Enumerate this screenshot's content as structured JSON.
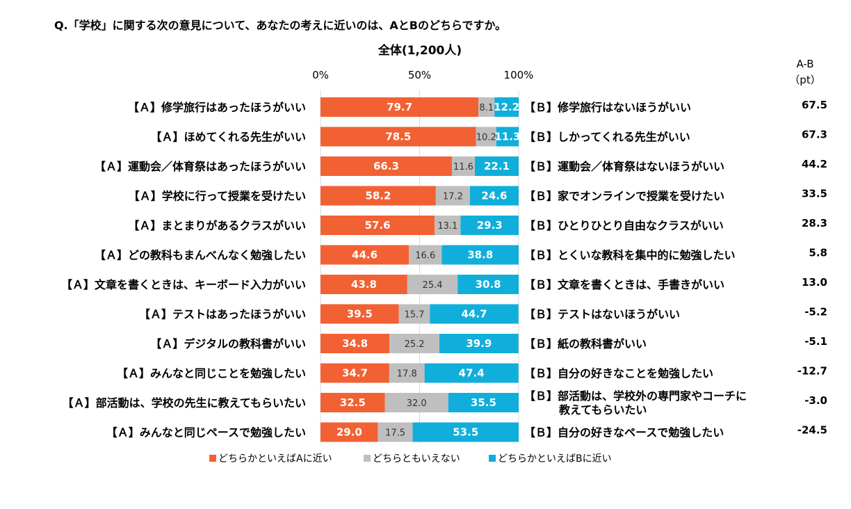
{
  "question": "Q.「学校」に関する次の意見について、あなたの考えに近いのは、AとBのどちらですか。",
  "diff_header": [
    "A-B",
    "（pt）"
  ],
  "chart_data": {
    "type": "bar",
    "orientation": "horizontal",
    "stacked": "percent",
    "title": "全体(1,200人)",
    "x_ticks": [
      "0%",
      "50%",
      "100%"
    ],
    "xlim": [
      0,
      100
    ],
    "legend_position": "bottom",
    "colors": {
      "a": "#f26133",
      "neutral": "#bfbfbf",
      "b": "#10aedb"
    },
    "series": [
      {
        "key": "a",
        "name": "どちらかといえばAに近い"
      },
      {
        "key": "neutral",
        "name": "どちらともいえない"
      },
      {
        "key": "b",
        "name": "どちらかといえばBに近い"
      }
    ],
    "rows": [
      {
        "label_a": "【Ａ】修学旅行はあったほうがいい",
        "label_b": [
          "【Ｂ】修学旅行はないほうがいい"
        ],
        "a": "79.7",
        "neutral": "8.1",
        "b": "12.2",
        "diff": "67.5"
      },
      {
        "label_a": "【Ａ】ほめてくれる先生がいい",
        "label_b": [
          "【Ｂ】しかってくれる先生がいい"
        ],
        "a": "78.5",
        "neutral": "10.2",
        "b": "11.3",
        "diff": "67.3"
      },
      {
        "label_a": "【Ａ】運動会／体育祭はあったほうがいい",
        "label_b": [
          "【Ｂ】運動会／体育祭はないほうがいい"
        ],
        "a": "66.3",
        "neutral": "11.6",
        "b": "22.1",
        "diff": "44.2"
      },
      {
        "label_a": "【Ａ】学校に行って授業を受けたい",
        "label_b": [
          "【Ｂ】家でオンラインで授業を受けたい"
        ],
        "a": "58.2",
        "neutral": "17.2",
        "b": "24.6",
        "diff": "33.5"
      },
      {
        "label_a": "【Ａ】まとまりがあるクラスがいい",
        "label_b": [
          "【Ｂ】ひとりひとり自由なクラスがいい"
        ],
        "a": "57.6",
        "neutral": "13.1",
        "b": "29.3",
        "diff": "28.3"
      },
      {
        "label_a": "【Ａ】どの教科もまんべんなく勉強したい",
        "label_b": [
          "【Ｂ】とくいな教科を集中的に勉強したい"
        ],
        "a": "44.6",
        "neutral": "16.6",
        "b": "38.8",
        "diff": "5.8"
      },
      {
        "label_a": "【Ａ】文章を書くときは、キーボード入力がいい",
        "label_b": [
          "【Ｂ】文章を書くときは、手書きがいい"
        ],
        "a": "43.8",
        "neutral": "25.4",
        "b": "30.8",
        "diff": "13.0"
      },
      {
        "label_a": "【Ａ】テストはあったほうがいい",
        "label_b": [
          "【Ｂ】テストはないほうがいい"
        ],
        "a": "39.5",
        "neutral": "15.7",
        "b": "44.7",
        "diff": "-5.2"
      },
      {
        "label_a": "【Ａ】デジタルの教科書がいい",
        "label_b": [
          "【Ｂ】紙の教科書がいい"
        ],
        "a": "34.8",
        "neutral": "25.2",
        "b": "39.9",
        "diff": "-5.1"
      },
      {
        "label_a": "【Ａ】みんなと同じことを勉強したい",
        "label_b": [
          "【Ｂ】自分の好きなことを勉強したい"
        ],
        "a": "34.7",
        "neutral": "17.8",
        "b": "47.4",
        "diff": "-12.7"
      },
      {
        "label_a": "【Ａ】部活動は、学校の先生に教えてもらいたい",
        "label_b": [
          "【Ｂ】部活動は、学校外の専門家やコーチに",
          "教えてもらいたい"
        ],
        "a": "32.5",
        "neutral": "32.0",
        "b": "35.5",
        "diff": "-3.0"
      },
      {
        "label_a": "【Ａ】みんなと同じペースで勉強したい",
        "label_b": [
          "【Ｂ】自分の好きなペースで勉強したい"
        ],
        "a": "29.0",
        "neutral": "17.5",
        "b": "53.5",
        "diff": "-24.5"
      }
    ]
  }
}
